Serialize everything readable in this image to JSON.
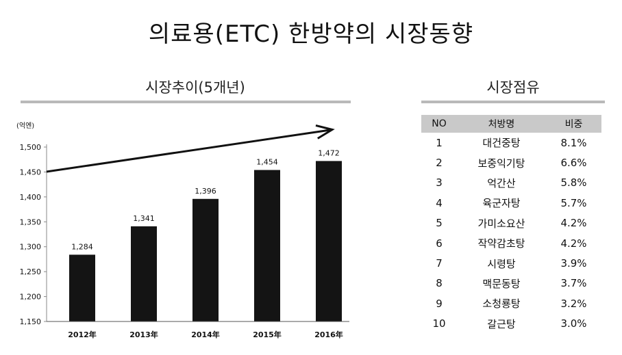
{
  "page": {
    "title": "의료용(ETC) 한방약의 시장동향"
  },
  "left_section": {
    "title": "시장추이(5개년)"
  },
  "right_section": {
    "title": "시장점유",
    "headers": [
      "NO",
      "처방명",
      "비중"
    ],
    "rows": [
      {
        "no": "1",
        "name": "대건중탕",
        "share": "8.1%"
      },
      {
        "no": "2",
        "name": "보중익기탕",
        "share": "6.6%"
      },
      {
        "no": "3",
        "name": "억간산",
        "share": "5.8%"
      },
      {
        "no": "4",
        "name": "육군자탕",
        "share": "5.7%"
      },
      {
        "no": "5",
        "name": "가미소요산",
        "share": "4.2%"
      },
      {
        "no": "6",
        "name": "작약감초탕",
        "share": "4.2%"
      },
      {
        "no": "7",
        "name": "시령탕",
        "share": "3.9%"
      },
      {
        "no": "8",
        "name": "맥문동탕",
        "share": "3.7%"
      },
      {
        "no": "9",
        "name": "소청룡탕",
        "share": "3.2%"
      },
      {
        "no": "10",
        "name": "갈근탕",
        "share": "3.0%"
      }
    ]
  },
  "chart_data": {
    "type": "bar",
    "title": "시장추이(5개년)",
    "unit": "(억엔)",
    "categories": [
      "2012年",
      "2013年",
      "2014年",
      "2015年",
      "2016年"
    ],
    "values": [
      1284,
      1341,
      1396,
      1454,
      1472
    ],
    "value_labels": [
      "1,284",
      "1,341",
      "1,396",
      "1,454",
      "1,472"
    ],
    "ylim": [
      1150,
      1500
    ],
    "yticks": [
      1150,
      1200,
      1250,
      1300,
      1350,
      1400,
      1450,
      1500
    ],
    "ytick_labels": [
      "1,150",
      "1,200",
      "1,250",
      "1,300",
      "1,350",
      "1,400",
      "1,450",
      "1,500"
    ],
    "bar_color": "#141414",
    "trend_arrow": true,
    "xlabel": "",
    "ylabel": ""
  }
}
